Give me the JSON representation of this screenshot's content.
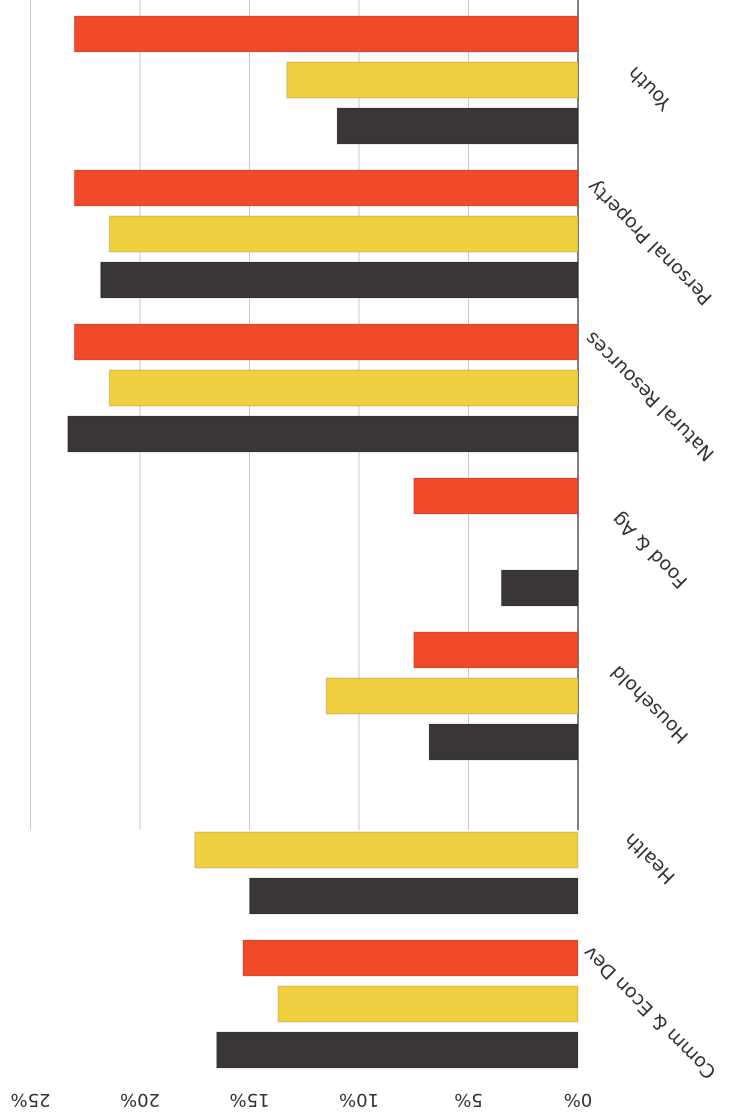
{
  "chart_data": {
    "type": "bar",
    "orientation": "horizontal",
    "rotated_upside_down": true,
    "categories": [
      "Comm & Econ Dev",
      "Health",
      "Household",
      "Food & Ag",
      "Natural Resources",
      "Personal Property",
      "Youth"
    ],
    "series": [
      {
        "color": "#3a3536",
        "values": [
          16.5,
          15.0,
          6.8,
          3.5,
          23.3,
          21.8,
          11.0
        ]
      },
      {
        "color": "#f0d040",
        "values": [
          13.7,
          17.5,
          11.5,
          null,
          21.4,
          21.4,
          13.3
        ]
      },
      {
        "color": "#f04a2a",
        "values": [
          15.3,
          null,
          7.5,
          7.5,
          23.0,
          23.0,
          23.0
        ]
      }
    ],
    "ylim": [
      0,
      25
    ],
    "yticks": [
      "0%",
      "5%",
      "10%",
      "15%",
      "20%",
      "25%"
    ],
    "grid": true
  }
}
